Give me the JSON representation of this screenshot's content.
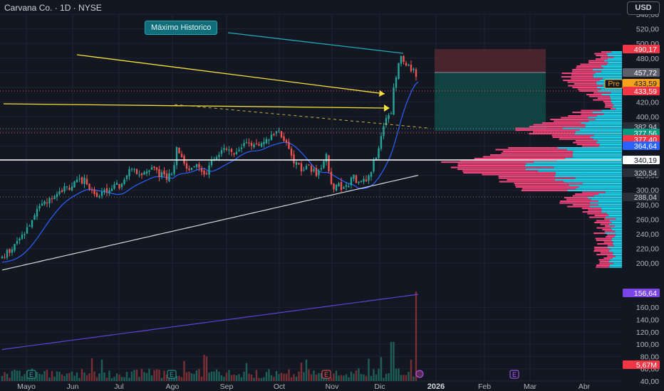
{
  "header": {
    "symbol_line": "Carvana Co. · 1D · NYSE"
  },
  "currency_button": "USD",
  "annotation": "Máximo Historico",
  "chart_data": {
    "type": "candlestick",
    "y_axis": {
      "price_ticks": [
        "540,00",
        "520,00",
        "500,00",
        "480,00",
        "460,00",
        "440,00",
        "420,00",
        "400,00",
        "380,00",
        "360,00",
        "340,00",
        "320,00",
        "300,00",
        "280,00",
        "260,00",
        "240,00",
        "220,00",
        "200,00"
      ],
      "volume_ticks": [
        "160,00",
        "140,00",
        "120,00",
        "100,00",
        "80,00",
        "60,00",
        "40,00"
      ]
    },
    "x_axis": {
      "labels": [
        "Mayo",
        "Jun",
        "Jul",
        "Ago",
        "Sep",
        "Oct",
        "Nov",
        "Dic",
        "2026",
        "Feb",
        "Mar",
        "Abr"
      ]
    },
    "price_labels": [
      {
        "text": "490,17",
        "kind": "red"
      },
      {
        "text": "457,72",
        "kind": "grey"
      },
      {
        "text": "433,59",
        "kind": "orange"
      },
      {
        "text": "433,59",
        "kind": "red"
      },
      {
        "text": "382,94",
        "kind": "dark"
      },
      {
        "text": "377,56",
        "kind": "teal"
      },
      {
        "text": "377,40",
        "kind": "red"
      },
      {
        "text": "364,64",
        "kind": "blue"
      },
      {
        "text": "340,19",
        "kind": "white"
      },
      {
        "text": "320,54",
        "kind": "dark"
      },
      {
        "text": "288,04",
        "kind": "dark"
      },
      {
        "text": "156,64",
        "kind": "purple"
      },
      {
        "text": "5,67M",
        "kind": "red"
      }
    ],
    "pre_label": "Pre",
    "key_points": [
      {
        "x": "Ago",
        "y": 412
      },
      {
        "x": "Dic",
        "y": 487
      },
      {
        "x": "Dic",
        "y": 433.59
      }
    ],
    "markers": [
      "E",
      "E",
      "E",
      "E"
    ],
    "colors": {
      "up": "#26a69a",
      "down": "#ef5350",
      "ma_fast": "#2962ff",
      "ma_slow": "#e0e3eb",
      "trend": "#f5e03b",
      "vp_up": "#22d3ee",
      "vp_down": "#f0457a"
    }
  }
}
